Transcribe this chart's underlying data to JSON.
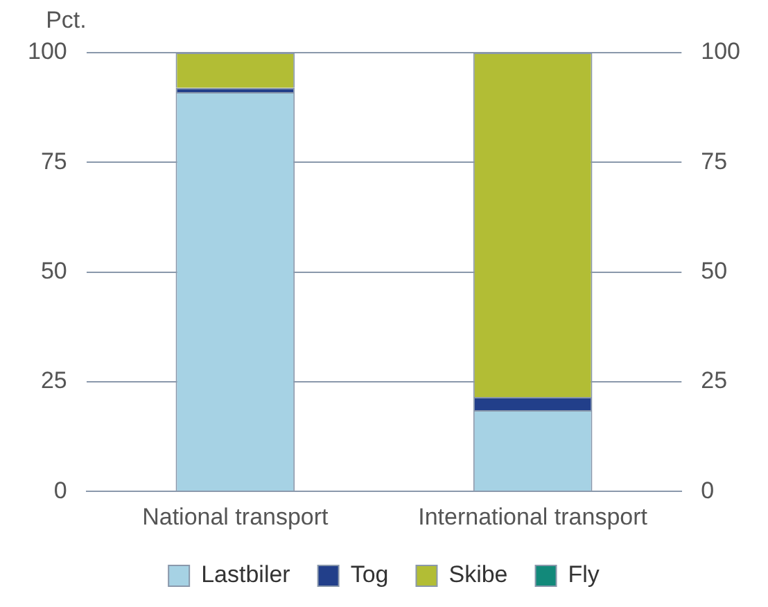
{
  "chart_data": {
    "type": "bar",
    "stacked": true,
    "ylabel": "Pct.",
    "categories": [
      "National transport",
      "International transport"
    ],
    "series": [
      {
        "name": "Lastbiler",
        "color": "#a6d2e4",
        "values": [
          91,
          18.5
        ]
      },
      {
        "name": "Tog",
        "color": "#223f8a",
        "values": [
          1,
          3
        ]
      },
      {
        "name": "Skibe",
        "color": "#b2bd35",
        "values": [
          8,
          78.5
        ]
      },
      {
        "name": "Fly",
        "color": "#12897a",
        "values": [
          0,
          0
        ]
      }
    ],
    "ylim": [
      0,
      100
    ],
    "yticks": [
      0,
      25,
      50,
      75,
      100
    ],
    "y2lim": [
      0,
      100
    ],
    "y2ticks": [
      0,
      25,
      50,
      75,
      100
    ],
    "grid": "y",
    "legend": "bottom"
  }
}
